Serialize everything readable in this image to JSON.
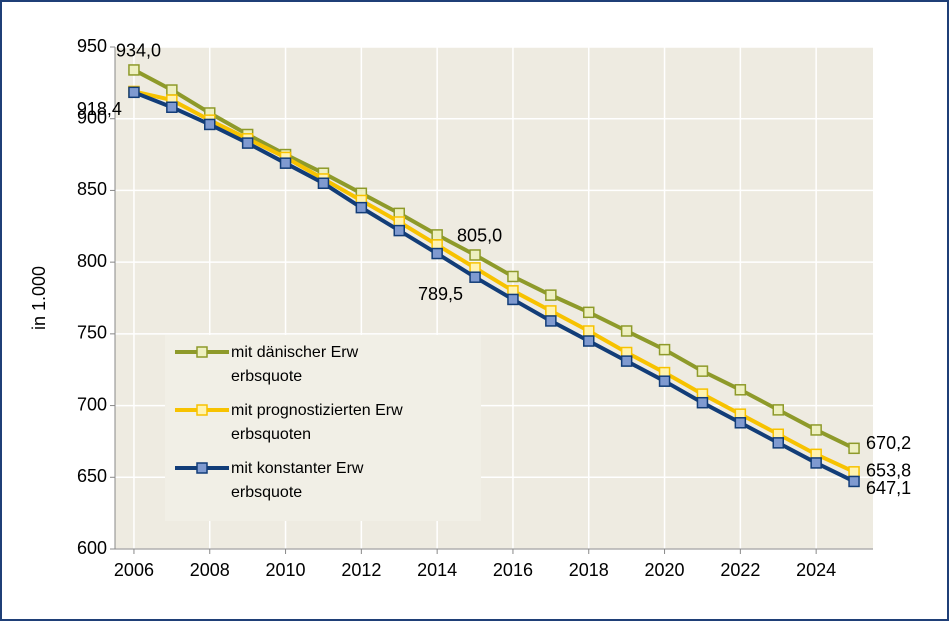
{
  "chart_data": {
    "type": "line",
    "y_label": "in 1.000",
    "x": [
      2006,
      2007,
      2008,
      2009,
      2010,
      2011,
      2012,
      2013,
      2014,
      2015,
      2016,
      2017,
      2018,
      2019,
      2020,
      2021,
      2022,
      2023,
      2024,
      2025
    ],
    "series": [
      {
        "name": "mit dänischer Erw erbsquote",
        "color": "#8e9a2a",
        "values": [
          934.0,
          920,
          904,
          889,
          875,
          862,
          848,
          834,
          819,
          805.0,
          790,
          777,
          765,
          752,
          739,
          724,
          711,
          697,
          683,
          670.2
        ],
        "value_labels": [
          "934,0",
          null,
          null,
          null,
          null,
          null,
          null,
          null,
          null,
          "805,0",
          null,
          null,
          null,
          null,
          null,
          null,
          null,
          null,
          null,
          "670,2"
        ]
      },
      {
        "name": "mit prognostizierten Erw erbsquoten",
        "color": "#f7c200",
        "values": [
          919,
          913,
          899,
          886,
          873,
          858,
          843,
          828,
          812,
          796,
          780,
          766,
          752,
          737,
          723,
          708,
          694,
          680,
          666,
          653.8
        ],
        "value_labels": [
          null,
          null,
          null,
          null,
          null,
          null,
          null,
          null,
          null,
          null,
          null,
          null,
          null,
          null,
          null,
          null,
          null,
          null,
          null,
          "653,8"
        ]
      },
      {
        "name": "mit konstanter Erw erbsquote",
        "color": "#123d78",
        "values": [
          918.4,
          908,
          896,
          883,
          869,
          855,
          838,
          822,
          806,
          789.5,
          774,
          759,
          745,
          731,
          717,
          702,
          688,
          674,
          660,
          647.1
        ],
        "value_labels": [
          "918,4",
          null,
          null,
          null,
          null,
          null,
          null,
          null,
          null,
          "789,5",
          null,
          null,
          null,
          null,
          null,
          null,
          null,
          null,
          null,
          "647,1"
        ]
      }
    ],
    "xlim": [
      2005.5,
      2025.5
    ],
    "xticks": [
      2006,
      2008,
      2010,
      2012,
      2014,
      2016,
      2018,
      2020,
      2022,
      2024
    ],
    "ylim": [
      600,
      950
    ],
    "yticks": [
      600,
      650,
      700,
      750,
      800,
      850,
      900,
      950
    ],
    "grid": true,
    "legend": "lower left"
  }
}
